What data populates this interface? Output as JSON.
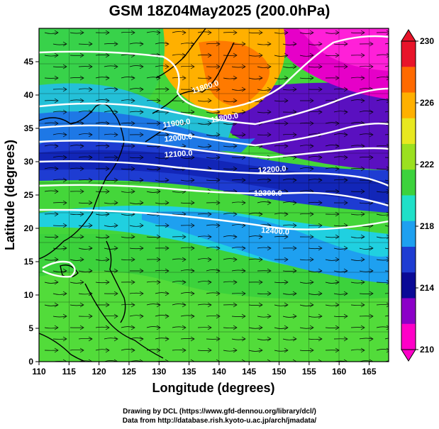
{
  "title": "GSM 18Z04May2025 (200.0hPa)",
  "x_axis": {
    "label": "Longitude (degrees)",
    "ticks": [
      "110",
      "115",
      "120",
      "125",
      "130",
      "135",
      "140",
      "145",
      "150",
      "155",
      "160",
      "165"
    ]
  },
  "y_axis": {
    "label": "Latitude (degrees)",
    "ticks": [
      "0",
      "5",
      "10",
      "15",
      "20",
      "25",
      "30",
      "35",
      "40",
      "45"
    ]
  },
  "colorbar": {
    "labels": [
      "230",
      "226",
      "222",
      "218",
      "214",
      "210"
    ],
    "colors": [
      "#e8142a",
      "#ff6a00",
      "#ffb000",
      "#e8e820",
      "#9be020",
      "#3cd23c",
      "#20e0c8",
      "#1ea0f0",
      "#1e3cd2",
      "#0a0a96",
      "#8c00c8",
      "#ff00c8"
    ]
  },
  "contours": [
    {
      "label": "11800.0"
    },
    {
      "label": "11900.0"
    },
    {
      "label": "12000.0"
    },
    {
      "label": "12100.0"
    },
    {
      "label": "12200.0"
    },
    {
      "label": "12300.0"
    },
    {
      "label": "12400.0"
    }
  ],
  "credits": {
    "line1": "Drawing by DCL (https://www.gfd-dennou.org/library/dcl/)",
    "line2": "Data from http://database.rish.kyoto-u.ac.jp/arch/jmadata/"
  }
}
